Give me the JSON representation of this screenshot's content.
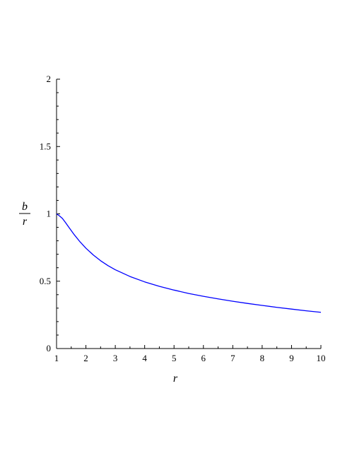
{
  "chart_data": {
    "type": "line",
    "title": "",
    "xlabel": "r",
    "ylabel": {
      "numerator": "b",
      "denominator": "r"
    },
    "xlim": [
      1,
      10
    ],
    "ylim": [
      0,
      2
    ],
    "x_ticks": [
      1,
      2,
      3,
      4,
      5,
      6,
      7,
      8,
      9,
      10
    ],
    "x_tick_labels": [
      "1",
      "2",
      "3",
      "4",
      "5",
      "6",
      "7",
      "8",
      "9",
      "10"
    ],
    "y_ticks": [
      0,
      0.5,
      1,
      1.5,
      2
    ],
    "y_tick_labels": [
      "0",
      "0.5",
      "1",
      "1.5",
      "2"
    ],
    "grid": false,
    "legend": "none",
    "series": [
      {
        "color": "#0000ff",
        "x": [
          1.0,
          1.1,
          1.2,
          1.3,
          1.4,
          1.5,
          1.6,
          1.8,
          2.0,
          2.25,
          2.5,
          2.75,
          3.0,
          3.5,
          4.0,
          4.5,
          5.0,
          5.5,
          6.0,
          6.5,
          7.0,
          7.5,
          8.0,
          8.5,
          9.0,
          9.5,
          10.0
        ],
        "y": [
          1.0,
          0.985,
          0.966,
          0.937,
          0.906,
          0.876,
          0.846,
          0.792,
          0.745,
          0.695,
          0.652,
          0.616,
          0.585,
          0.535,
          0.495,
          0.462,
          0.434,
          0.409,
          0.388,
          0.369,
          0.351,
          0.335,
          0.32,
          0.306,
          0.293,
          0.28,
          0.269
        ]
      }
    ]
  }
}
